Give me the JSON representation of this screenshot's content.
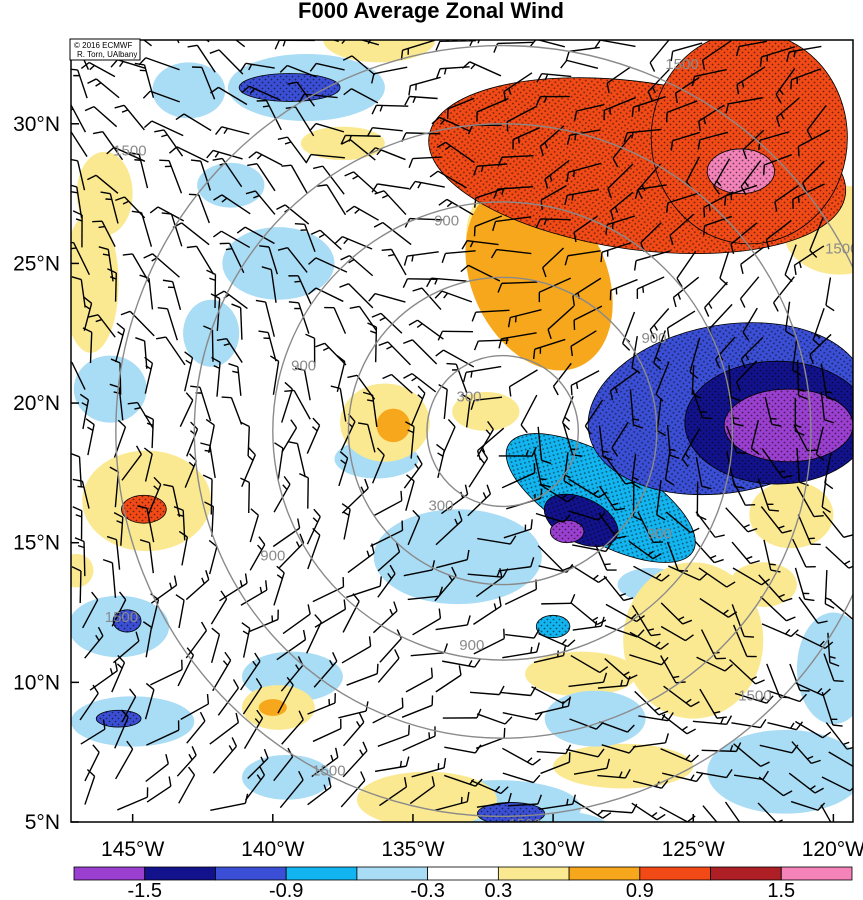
{
  "title": "F000 Average Zonal Wind",
  "credit": {
    "line1": "© 2016 ECMWF",
    "line2": "R. Torn, UAlbany"
  },
  "colors": {
    "purple": "#9b3fd0",
    "navy": "#12128c",
    "royal": "#3b4fd6",
    "cyan": "#12b5f0",
    "light_blue": "#a9dcf5",
    "white": "#ffffff",
    "light_yellow": "#fbe992",
    "orange": "#f7a71b",
    "red_orange": "#f24a17",
    "dark_red": "#ad1f24",
    "pink": "#f383b9",
    "ring": "#8a8a8a"
  },
  "chart_data": {
    "type": "heatmap",
    "title": "F000 Average Zonal Wind",
    "x_axis": {
      "ticks": [
        -145,
        -140,
        -135,
        -130,
        -125,
        -120
      ],
      "tick_labels": [
        "145°W",
        "140°W",
        "135°W",
        "130°W",
        "125°W",
        "120°W"
      ],
      "range": [
        -147.2,
        -119.3
      ]
    },
    "y_axis": {
      "ticks": [
        5,
        10,
        15,
        20,
        25,
        30
      ],
      "tick_labels": [
        "5°N",
        "10°N",
        "15°N",
        "20°N",
        "25°N",
        "30°N"
      ],
      "range": [
        5,
        33
      ]
    },
    "colorbar": {
      "levels": [
        -1.8,
        -1.5,
        -1.2,
        -0.9,
        -0.6,
        -0.3,
        0.3,
        0.6,
        0.9,
        1.2,
        1.5,
        1.8
      ],
      "tick_labels": [
        "-1.5",
        "-0.9",
        "-0.3",
        "0.3",
        "0.9",
        "1.5"
      ],
      "colors": [
        "#9b3fd0",
        "#12128c",
        "#3b4fd6",
        "#12b5f0",
        "#a9dcf5",
        "#ffffff",
        "#fbe992",
        "#f7a71b",
        "#f24a17",
        "#ad1f24",
        "#f383b9"
      ]
    },
    "range_rings": {
      "center": {
        "lon": -131.8,
        "lat": 19.0
      },
      "labels": [
        "300",
        "900",
        "1500"
      ]
    },
    "contour_labels": [
      {
        "text": "300",
        "lon": -133.0,
        "lat": 20.2
      },
      {
        "text": "300",
        "lon": -134.0,
        "lat": 16.3
      },
      {
        "text": "900",
        "lon": -138.9,
        "lat": 21.3
      },
      {
        "text": "900",
        "lon": -133.8,
        "lat": 26.5
      },
      {
        "text": "900",
        "lon": -140.0,
        "lat": 14.5
      },
      {
        "text": "900",
        "lon": -132.9,
        "lat": 11.3
      },
      {
        "text": "900",
        "lon": -126.4,
        "lat": 22.3
      },
      {
        "text": "900",
        "lon": -126.2,
        "lat": 15.3
      },
      {
        "text": "1500",
        "lon": -145.1,
        "lat": 29.0
      },
      {
        "text": "1500",
        "lon": -133.5,
        "lat": 33.1
      },
      {
        "text": "1500",
        "lon": -125.4,
        "lat": 32.1
      },
      {
        "text": "1500",
        "lon": -119.7,
        "lat": 25.5
      },
      {
        "text": "1500",
        "lon": -145.4,
        "lat": 12.3
      },
      {
        "text": "1500",
        "lon": -138.0,
        "lat": 6.8
      },
      {
        "text": "1500",
        "lon": -122.8,
        "lat": 9.5
      },
      {
        "text": "1500",
        "lon": -131.0,
        "lat": 4.9
      }
    ],
    "anomaly_features": [
      {
        "value": 1.0,
        "lon": -127.0,
        "lat": 28.5,
        "rx": 7.5,
        "ry": 3.0,
        "rot": 8
      },
      {
        "value": 1.1,
        "lon": -123.0,
        "lat": 29.5,
        "rx": 3.5,
        "ry": 3.8,
        "rot": 0
      },
      {
        "value": 1.8,
        "lon": -123.3,
        "lat": 28.3,
        "rx": 1.2,
        "ry": 0.8,
        "rot": 0
      },
      {
        "value": 0.7,
        "lon": -130.5,
        "lat": 24.5,
        "rx": 2.4,
        "ry": 3.5,
        "rot": -25
      },
      {
        "value": 0.55,
        "lon": -131.5,
        "lat": 26.0,
        "rx": 1.6,
        "ry": 2.0,
        "rot": 0
      },
      {
        "value": 0.45,
        "lon": -119.8,
        "lat": 26.2,
        "rx": 2.0,
        "ry": 1.6,
        "rot": 0
      },
      {
        "value": -1.0,
        "lon": -123.8,
        "lat": 19.8,
        "rx": 5.0,
        "ry": 3.0,
        "rot": -10
      },
      {
        "value": -1.4,
        "lon": -122.0,
        "lat": 19.3,
        "rx": 3.3,
        "ry": 2.2,
        "rot": 0
      },
      {
        "value": -1.7,
        "lon": -121.6,
        "lat": 19.2,
        "rx": 2.3,
        "ry": 1.3,
        "rot": 0
      },
      {
        "value": -0.9,
        "lon": -128.3,
        "lat": 16.6,
        "rx": 3.8,
        "ry": 1.5,
        "rot": 30
      },
      {
        "value": -1.3,
        "lon": -129.0,
        "lat": 15.8,
        "rx": 1.4,
        "ry": 0.8,
        "rot": 25
      },
      {
        "value": -1.6,
        "lon": -129.5,
        "lat": 15.4,
        "rx": 0.6,
        "ry": 0.4,
        "rot": 0
      },
      {
        "value": -0.45,
        "lon": -133.4,
        "lat": 14.5,
        "rx": 3.0,
        "ry": 1.7,
        "rot": 0
      },
      {
        "value": -0.5,
        "lon": -138.8,
        "lat": 31.3,
        "rx": 2.8,
        "ry": 1.2,
        "rot": 0
      },
      {
        "value": -1.1,
        "lon": -139.4,
        "lat": 31.3,
        "rx": 1.8,
        "ry": 0.5,
        "rot": 0
      },
      {
        "value": -0.35,
        "lon": -143.0,
        "lat": 31.2,
        "rx": 1.3,
        "ry": 1.0,
        "rot": 0
      },
      {
        "value": -0.35,
        "lon": -141.5,
        "lat": 27.8,
        "rx": 1.2,
        "ry": 0.8,
        "rot": 0
      },
      {
        "value": -0.4,
        "lon": -139.8,
        "lat": 25.0,
        "rx": 2.0,
        "ry": 1.3,
        "rot": 0
      },
      {
        "value": -0.35,
        "lon": -142.2,
        "lat": 22.5,
        "rx": 1.0,
        "ry": 1.2,
        "rot": 0
      },
      {
        "value": -0.45,
        "lon": -145.8,
        "lat": 20.5,
        "rx": 1.3,
        "ry": 1.2,
        "rot": 0
      },
      {
        "value": -0.4,
        "lon": -145.5,
        "lat": 12.0,
        "rx": 1.8,
        "ry": 1.1,
        "rot": 0
      },
      {
        "value": -1.0,
        "lon": -145.2,
        "lat": 12.2,
        "rx": 0.5,
        "ry": 0.4,
        "rot": 0
      },
      {
        "value": -0.5,
        "lon": -145.0,
        "lat": 8.6,
        "rx": 2.2,
        "ry": 0.9,
        "rot": 0
      },
      {
        "value": -1.1,
        "lon": -145.5,
        "lat": 8.7,
        "rx": 0.8,
        "ry": 0.3,
        "rot": 0
      },
      {
        "value": -0.4,
        "lon": -139.3,
        "lat": 10.2,
        "rx": 1.8,
        "ry": 0.9,
        "rot": 0
      },
      {
        "value": -0.4,
        "lon": -139.5,
        "lat": 6.6,
        "rx": 1.6,
        "ry": 0.8,
        "rot": 0
      },
      {
        "value": -0.35,
        "lon": -132.0,
        "lat": 5.5,
        "rx": 3.0,
        "ry": 1.0,
        "rot": 0
      },
      {
        "value": -1.0,
        "lon": -131.5,
        "lat": 5.3,
        "rx": 1.2,
        "ry": 0.4,
        "rot": 0
      },
      {
        "value": -0.4,
        "lon": -121.7,
        "lat": 6.8,
        "rx": 2.8,
        "ry": 1.5,
        "rot": 0
      },
      {
        "value": -0.4,
        "lon": -120.0,
        "lat": 10.5,
        "rx": 1.3,
        "ry": 2.0,
        "rot": 0
      },
      {
        "value": -0.4,
        "lon": -128.5,
        "lat": 8.7,
        "rx": 1.8,
        "ry": 1.0,
        "rot": 0
      },
      {
        "value": -0.9,
        "lon": -130.0,
        "lat": 12.0,
        "rx": 0.6,
        "ry": 0.4,
        "rot": 0
      },
      {
        "value": -0.4,
        "lon": -126.5,
        "lat": 13.5,
        "rx": 1.2,
        "ry": 0.6,
        "rot": 0
      },
      {
        "value": -0.35,
        "lon": -136.3,
        "lat": 18.0,
        "rx": 1.5,
        "ry": 0.7,
        "rot": 0
      },
      {
        "value": -0.35,
        "lon": -130.0,
        "lat": 4.8,
        "rx": 2.0,
        "ry": 0.6,
        "rot": 0
      },
      {
        "value": 0.45,
        "lon": -144.5,
        "lat": 16.5,
        "rx": 2.3,
        "ry": 1.8,
        "rot": 0
      },
      {
        "value": 1.0,
        "lon": -144.6,
        "lat": 16.2,
        "rx": 0.8,
        "ry": 0.5,
        "rot": 0
      },
      {
        "value": 0.4,
        "lon": -136.0,
        "lat": 19.3,
        "rx": 1.6,
        "ry": 1.4,
        "rot": 0
      },
      {
        "value": 0.6,
        "lon": -135.7,
        "lat": 19.2,
        "rx": 0.6,
        "ry": 0.6,
        "rot": 0
      },
      {
        "value": 0.45,
        "lon": -132.4,
        "lat": 19.7,
        "rx": 1.2,
        "ry": 0.7,
        "rot": 0
      },
      {
        "value": 0.35,
        "lon": -129.0,
        "lat": 10.3,
        "rx": 2.0,
        "ry": 0.8,
        "rot": 0
      },
      {
        "value": 0.4,
        "lon": -125.0,
        "lat": 11.5,
        "rx": 2.5,
        "ry": 2.8,
        "rot": 0
      },
      {
        "value": 0.55,
        "lon": -122.5,
        "lat": 13.5,
        "rx": 1.2,
        "ry": 0.8,
        "rot": 0
      },
      {
        "value": 0.35,
        "lon": -121.5,
        "lat": 16.0,
        "rx": 1.5,
        "ry": 1.2,
        "rot": 0
      },
      {
        "value": 0.4,
        "lon": -139.8,
        "lat": 9.1,
        "rx": 1.3,
        "ry": 0.8,
        "rot": 0
      },
      {
        "value": 0.8,
        "lon": -140.0,
        "lat": 9.1,
        "rx": 0.5,
        "ry": 0.3,
        "rot": 0
      },
      {
        "value": 0.4,
        "lon": -146.5,
        "lat": 24.3,
        "rx": 1.0,
        "ry": 2.5,
        "rot": 0
      },
      {
        "value": 0.35,
        "lon": -146.0,
        "lat": 27.5,
        "rx": 1.0,
        "ry": 1.5,
        "rot": 0
      },
      {
        "value": 0.35,
        "lon": -147.0,
        "lat": 14.0,
        "rx": 0.6,
        "ry": 0.6,
        "rot": 0
      },
      {
        "value": 0.4,
        "lon": -134.5,
        "lat": 5.8,
        "rx": 2.5,
        "ry": 1.0,
        "rot": 0
      },
      {
        "value": 0.35,
        "lon": -127.5,
        "lat": 7.0,
        "rx": 2.5,
        "ry": 0.8,
        "rot": 0
      },
      {
        "value": 0.35,
        "lon": -137.5,
        "lat": 29.3,
        "rx": 1.5,
        "ry": 0.6,
        "rot": 0
      },
      {
        "value": 0.5,
        "lon": -136.2,
        "lat": 33.0,
        "rx": 2.0,
        "ry": 0.8,
        "rot": 0
      }
    ],
    "stippling_threshold": 0.9
  }
}
